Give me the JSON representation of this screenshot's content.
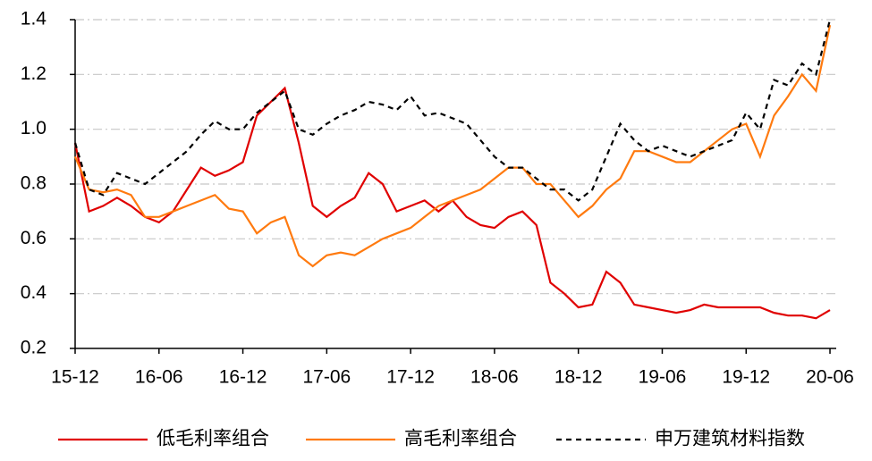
{
  "chart_data": {
    "type": "line",
    "categories": [
      "15-12",
      null,
      null,
      null,
      null,
      null,
      "16-06",
      null,
      null,
      null,
      null,
      null,
      "16-12",
      null,
      null,
      null,
      null,
      null,
      "17-06",
      null,
      null,
      null,
      null,
      null,
      "17-12",
      null,
      null,
      null,
      null,
      null,
      "18-06",
      null,
      null,
      null,
      null,
      null,
      "18-12",
      null,
      null,
      null,
      null,
      null,
      "19-06",
      null,
      null,
      null,
      null,
      null,
      "19-12",
      null,
      null,
      null,
      null,
      null,
      "20-06"
    ],
    "ylim": [
      0.2,
      1.4
    ],
    "yticks": [
      0.2,
      0.4,
      0.6,
      0.8,
      {
        "value": 1,
        "label": "1.0"
      },
      1.2,
      1.4
    ],
    "grid": true,
    "legend": "bottom",
    "series": [
      {
        "name": "低毛利率组合",
        "color": "#e00000",
        "dash": "solid",
        "values": [
          0.95,
          0.7,
          0.72,
          0.75,
          0.72,
          0.68,
          0.66,
          0.7,
          0.78,
          0.86,
          0.83,
          0.85,
          0.88,
          1.05,
          1.1,
          1.15,
          0.95,
          0.72,
          0.68,
          0.72,
          0.75,
          0.84,
          0.8,
          0.7,
          0.72,
          0.74,
          0.7,
          0.74,
          0.68,
          0.65,
          0.64,
          0.68,
          0.7,
          0.65,
          0.44,
          0.4,
          0.35,
          0.36,
          0.48,
          0.44,
          0.36,
          0.35,
          0.34,
          0.33,
          0.34,
          0.36,
          0.35,
          0.35,
          0.35,
          0.35,
          0.33,
          0.32,
          0.32,
          0.31,
          0.34
        ]
      },
      {
        "name": "高毛利率组合",
        "color": "#ff7a0f",
        "dash": "solid",
        "values": [
          0.9,
          0.78,
          0.77,
          0.78,
          0.76,
          0.68,
          0.68,
          0.7,
          0.72,
          0.74,
          0.76,
          0.71,
          0.7,
          0.62,
          0.66,
          0.68,
          0.54,
          0.5,
          0.54,
          0.55,
          0.54,
          0.57,
          0.6,
          0.62,
          0.64,
          0.68,
          0.72,
          0.74,
          0.76,
          0.78,
          0.82,
          0.86,
          0.86,
          0.8,
          0.8,
          0.74,
          0.68,
          0.72,
          0.78,
          0.82,
          0.92,
          0.92,
          0.9,
          0.88,
          0.88,
          0.92,
          0.96,
          1.0,
          1.02,
          0.9,
          1.05,
          1.12,
          1.2,
          1.14,
          1.38
        ]
      },
      {
        "name": "申万建筑材料指数",
        "color": "#000000",
        "dash": "dashed",
        "values": [
          0.95,
          0.78,
          0.76,
          0.84,
          0.82,
          0.8,
          0.84,
          0.88,
          0.92,
          0.98,
          1.03,
          1.0,
          1.0,
          1.06,
          1.1,
          1.14,
          1.0,
          0.98,
          1.02,
          1.05,
          1.07,
          1.1,
          1.09,
          1.07,
          1.12,
          1.05,
          1.06,
          1.04,
          1.02,
          0.96,
          0.9,
          0.86,
          0.86,
          0.82,
          0.78,
          0.78,
          0.74,
          0.78,
          0.9,
          1.02,
          0.96,
          0.92,
          0.94,
          0.92,
          0.9,
          0.92,
          0.94,
          0.96,
          1.06,
          1.0,
          1.18,
          1.16,
          1.24,
          1.2,
          1.4
        ]
      }
    ]
  }
}
